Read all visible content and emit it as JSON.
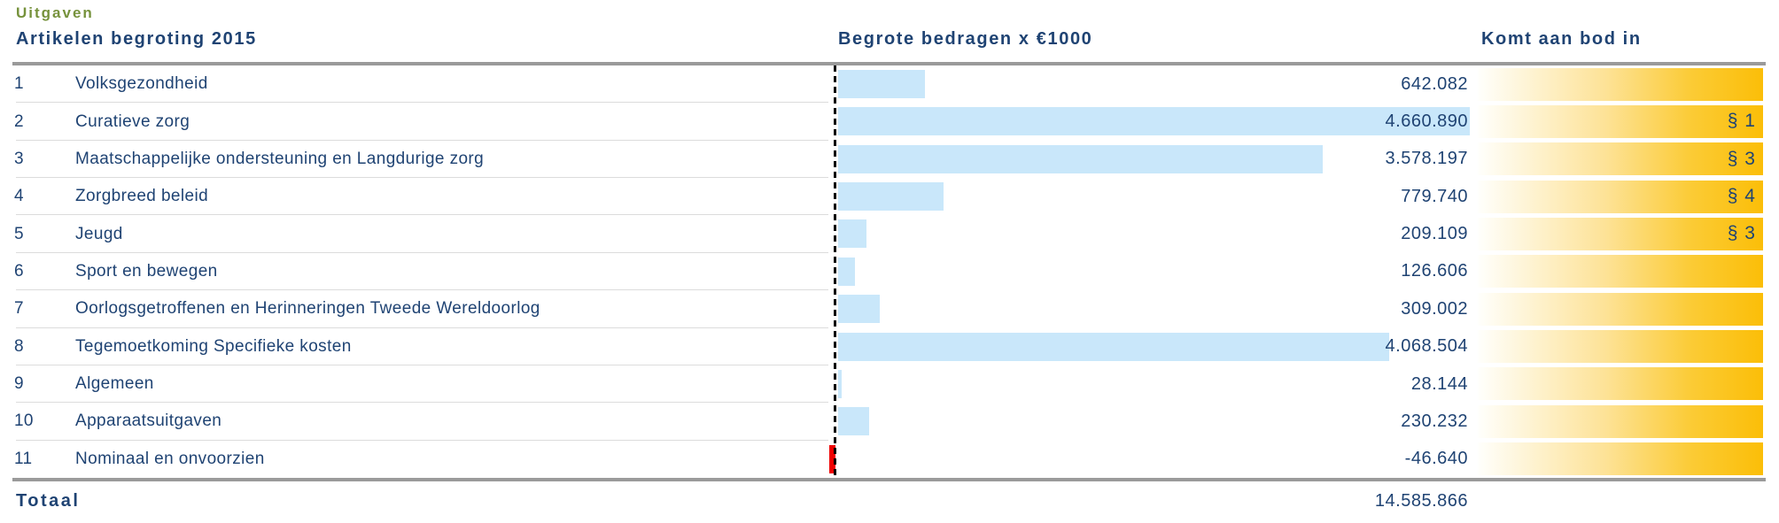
{
  "page_title": "Uitgaven",
  "table": {
    "headers": {
      "articles": "Artikelen begroting 2015",
      "amounts": "Begrote bedragen x €1000",
      "section": "Komt aan bod in"
    },
    "rows": [
      {
        "nr": "1",
        "label": "Volksgezondheid",
        "value": 642082,
        "value_display": "642.082",
        "section": ""
      },
      {
        "nr": "2",
        "label": "Curatieve zorg",
        "value": 4660890,
        "value_display": "4.660.890",
        "section": "§ 1"
      },
      {
        "nr": "3",
        "label": "Maatschappelijke ondersteuning en Langdurige zorg",
        "value": 3578197,
        "value_display": "3.578.197",
        "section": "§ 3"
      },
      {
        "nr": "4",
        "label": "Zorgbreed beleid",
        "value": 779740,
        "value_display": "779.740",
        "section": "§ 4"
      },
      {
        "nr": "5",
        "label": "Jeugd",
        "value": 209109,
        "value_display": "209.109",
        "section": "§ 3"
      },
      {
        "nr": "6",
        "label": "Sport en bewegen",
        "value": 126606,
        "value_display": "126.606",
        "section": ""
      },
      {
        "nr": "7",
        "label": "Oorlogsgetroffenen en Herinneringen Tweede Wereldoorlog",
        "value": 309002,
        "value_display": "309.002",
        "section": ""
      },
      {
        "nr": "8",
        "label": "Tegemoetkoming Specifieke kosten",
        "value": 4068504,
        "value_display": "4.068.504",
        "section": ""
      },
      {
        "nr": "9",
        "label": "Algemeen",
        "value": 28144,
        "value_display": "28.144",
        "section": ""
      },
      {
        "nr": "10",
        "label": "Apparaatsuitgaven",
        "value": 230232,
        "value_display": "230.232",
        "section": ""
      },
      {
        "nr": "11",
        "label": "Nominaal en onvoorzien",
        "value": -46640,
        "value_display": "-46.640",
        "section": ""
      }
    ],
    "total": {
      "label": "Totaal",
      "value": 14585866,
      "value_display": "14.585.866"
    }
  },
  "colors": {
    "navy": "#1F4373",
    "green": "#76923C",
    "lightblue": "#C9E7FA",
    "gold": "#FBBE08",
    "red": "#EE0000",
    "rule": "#9A9A9A",
    "sep": "#DCDCDC"
  },
  "chart_data": {
    "type": "bar",
    "orientation": "horizontal",
    "title": "Uitgaven",
    "subtitle": "Artikelen begroting 2015",
    "xlabel": "Begrote bedragen x €1000",
    "categories": [
      "Volksgezondheid",
      "Curatieve zorg",
      "Maatschappelijke ondersteuning en Langdurige zorg",
      "Zorgbreed beleid",
      "Jeugd",
      "Sport en bewegen",
      "Oorlogsgetroffenen en Herinneringen Tweede Wereldoorlog",
      "Tegemoetkoming Specifieke kosten",
      "Algemeen",
      "Apparaatsuitgaven",
      "Nominaal en onvoorzien"
    ],
    "values": [
      642082,
      4660890,
      3578197,
      779740,
      209109,
      126606,
      309002,
      4068504,
      28144,
      230232,
      -46640
    ],
    "sections": [
      "",
      "§ 1",
      "§ 3",
      "§ 4",
      "§ 3",
      "",
      "",
      "",
      "",
      "",
      ""
    ],
    "total": 14585866,
    "unit": "x €1000",
    "bar_color": "#C9E7FA",
    "negative_bar_color": "#EE0000",
    "axis": "dashed zero line at left of bars",
    "grid": false,
    "legend": false
  }
}
